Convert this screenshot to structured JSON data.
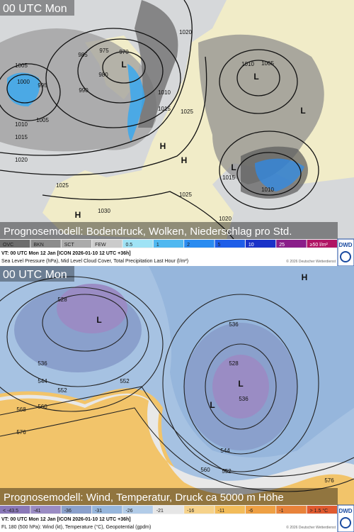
{
  "panels": [
    {
      "time": "00 UTC Mon",
      "caption": "Prognosemodell: Bodendruck, Wolken, Niederschlag pro Std.",
      "legend": [
        {
          "label": "OVC",
          "color": "#6e6e6e"
        },
        {
          "label": "BKN",
          "color": "#8c8c8c"
        },
        {
          "label": "SCT",
          "color": "#ababab"
        },
        {
          "label": "FEW",
          "color": "#cbcbcb"
        },
        {
          "label": "0.5",
          "color": "#9fe3f5"
        },
        {
          "label": "1",
          "color": "#4fb8f0"
        },
        {
          "label": "2",
          "color": "#2a8cf0"
        },
        {
          "label": "5",
          "color": "#1e5ee8"
        },
        {
          "label": "10",
          "color": "#1a32c8"
        },
        {
          "label": "25",
          "color": "#8a1e8a"
        },
        {
          "label": "≥50 l/m²",
          "color": "#b01464"
        }
      ],
      "logo": "DWD",
      "valid_time": "VT: 00 UTC Mon  12 Jan [ICON 2026-01-10 12 UTC +36h]",
      "description": "Sea Level Pressure (hPa), Mid Level Cloud Cover, Total Precipitation Last Hour (l/m²)",
      "copyright": "© 2026 Deutscher Wetterdienst",
      "contour_labels": [
        "1005",
        "995",
        "1000",
        "985",
        "975",
        "970",
        "980",
        "990",
        "1005",
        "1010",
        "1015",
        "1020",
        "1025",
        "1030",
        "1020",
        "1010",
        "1005",
        "1010",
        "1015",
        "1025",
        "1015",
        "1025",
        "1010",
        "1020",
        "L",
        "L",
        "L",
        "L",
        "H",
        "H",
        "H"
      ]
    },
    {
      "time": "00 UTC Mon",
      "caption": "Prognosemodell: Wind, Temperatur, Druck ca 5000 m Höhe",
      "legend": [
        {
          "label": "< -43.5",
          "color": "#8a78b8"
        },
        {
          "label": "-41",
          "color": "#9a8cc4"
        },
        {
          "label": "-36",
          "color": "#8aa0cc"
        },
        {
          "label": "-31",
          "color": "#96b6dc"
        },
        {
          "label": "-26",
          "color": "#b2cce8"
        },
        {
          "label": "-21",
          "color": "#e6e6e6"
        },
        {
          "label": "-16",
          "color": "#f6d28a"
        },
        {
          "label": "-11",
          "color": "#f2bc5a"
        },
        {
          "label": "-6",
          "color": "#eea044"
        },
        {
          "label": "-1",
          "color": "#e8823a"
        },
        {
          "label": "> 1.5 °C",
          "color": "#e05a30"
        }
      ],
      "logo": "DWD",
      "valid_time": "VT: 00 UTC Mon  12 Jan [ICON 2026-01-10 12 UTC +36h]",
      "description": "FL 180 (500 hPa): Wind (kt), Temperature (°C), Geopotential (gpdm)",
      "copyright": "© 2026 Deutscher Wetterdienst",
      "contour_labels": [
        "528",
        "536",
        "544",
        "552",
        "560",
        "568",
        "576",
        "552",
        "536",
        "528",
        "536",
        "544",
        "552",
        "560",
        "576",
        "L",
        "L",
        "L",
        "H"
      ]
    }
  ]
}
